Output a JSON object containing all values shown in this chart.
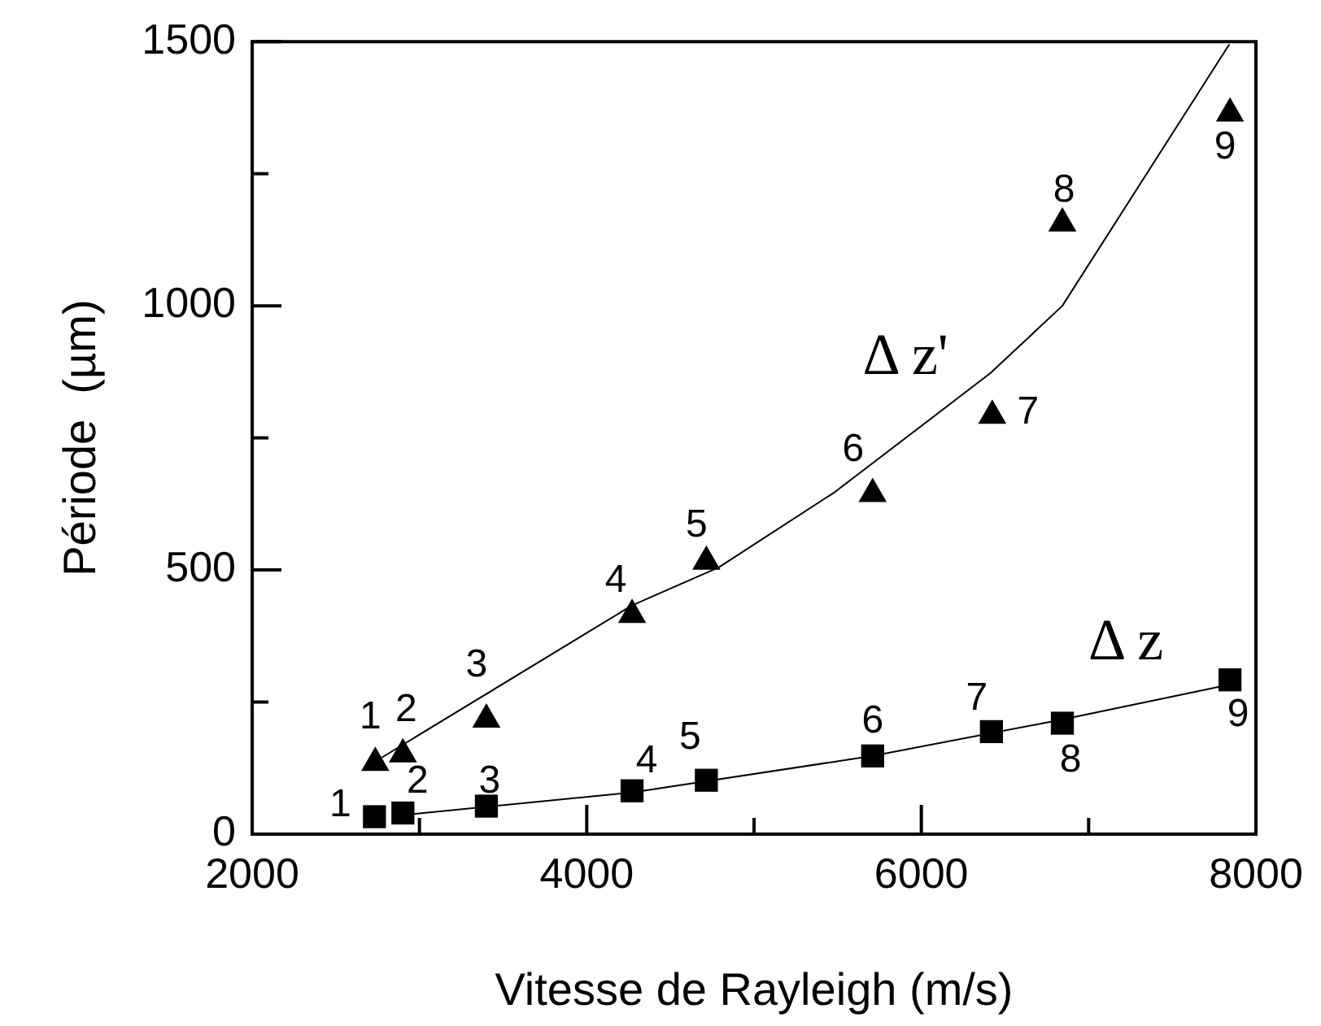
{
  "chart_data": {
    "type": "scatter",
    "xlabel": "Vitesse de Rayleigh (m/s)",
    "ylabel": "Période  (µm)",
    "xlim": [
      2000,
      8000
    ],
    "xticks": [
      2000,
      {
        "value": 3000,
        "label": null
      },
      4000,
      {
        "value": 5000,
        "label": null
      },
      6000,
      {
        "value": 7000,
        "label": null
      },
      8000
    ],
    "ylim": [
      0,
      1500
    ],
    "yticks": [
      0,
      {
        "value": 250,
        "label": null
      },
      500,
      {
        "value": 750,
        "label": null
      },
      1000,
      {
        "value": 1250,
        "label": null
      },
      1500
    ],
    "grid": false,
    "legend": false,
    "series": [
      {
        "type": "scatter",
        "marker": "triangle",
        "color": "#000000",
        "x": [
          2736,
          2901,
          3400,
          4271,
          4715,
          5709,
          6424,
          6843,
          7845
        ],
        "values": [
          135,
          151,
          217,
          415,
          516,
          644,
          792,
          1156,
          1364
        ]
      },
      {
        "type": "line",
        "name": "Δ z'",
        "marker": "none",
        "color": "#000000",
        "x": [
          2775,
          4271,
          4789,
          5481,
          6411,
          6843,
          7841
        ],
        "values": [
          145,
          433,
          505,
          647,
          872,
          1000,
          1495
        ]
      },
      {
        "type": "scatter",
        "marker": "square",
        "color": "#000000",
        "x": [
          2731,
          2901,
          3400,
          4271,
          4715,
          5709,
          6419,
          6843,
          7845
        ],
        "values": [
          33,
          40,
          53,
          82,
          102,
          148,
          194,
          210,
          292
        ]
      },
      {
        "type": "line",
        "name": "Δ z",
        "marker": "none",
        "color": "#000000",
        "x": [
          2901,
          4271,
          5709,
          6843,
          7845
        ],
        "values": [
          36,
          79,
          148,
          217,
          283
        ]
      }
    ],
    "annotations": [
      {
        "text": "1",
        "x": 2736,
        "y": 135
      },
      {
        "text": "2",
        "x": 2901,
        "y": 151
      },
      {
        "text": "3",
        "x": 3400,
        "y": 217
      },
      {
        "text": "4",
        "x": 4271,
        "y": 415
      },
      {
        "text": "5",
        "x": 4715,
        "y": 516
      },
      {
        "text": "6",
        "x": 5709,
        "y": 644
      },
      {
        "text": "7",
        "x": 6424,
        "y": 792
      },
      {
        "text": "8",
        "x": 6843,
        "y": 1156
      },
      {
        "text": "9",
        "x": 7845,
        "y": 1364
      },
      {
        "text": "1",
        "x": 2731,
        "y": 33
      },
      {
        "text": "2",
        "x": 2901,
        "y": 40
      },
      {
        "text": "3",
        "x": 3400,
        "y": 53
      },
      {
        "text": "4",
        "x": 4271,
        "y": 82
      },
      {
        "text": "5",
        "x": 4715,
        "y": 102
      },
      {
        "text": "6",
        "x": 5709,
        "y": 148
      },
      {
        "text": "7",
        "x": 6419,
        "y": 194
      },
      {
        "text": "8",
        "x": 6843,
        "y": 210
      },
      {
        "text": "9",
        "x": 7845,
        "y": 292
      }
    ]
  }
}
